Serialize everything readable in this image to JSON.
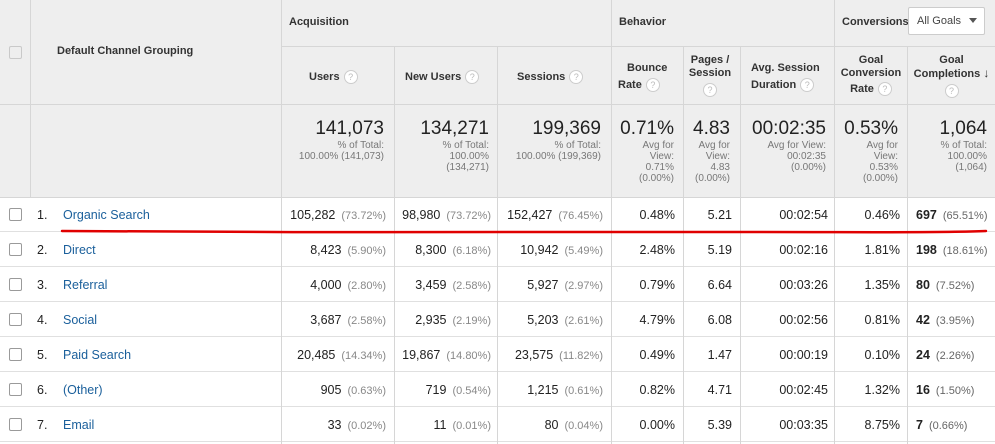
{
  "header": {
    "dimension_label": "Default Channel Grouping",
    "group_acquisition": "Acquisition",
    "group_behavior": "Behavior",
    "group_conversions": "Conversions",
    "goal_select": "All Goals",
    "col_users": "Users",
    "col_new_users": "New Users",
    "col_sessions": "Sessions",
    "col_bounce_1": "Bounce",
    "col_bounce_2": "Rate",
    "col_pages_1": "Pages /",
    "col_pages_2": "Session",
    "col_avg_1": "Avg. Session",
    "col_avg_2": "Duration",
    "col_gcr_1": "Goal",
    "col_gcr_2": "Conversion",
    "col_gcr_3": "Rate",
    "col_gc_1": "Goal",
    "col_gc_2": "Completions",
    "help": "?",
    "sort_arrow": "↓"
  },
  "totals": {
    "users": "141,073",
    "users_sub1": "% of Total:",
    "users_sub2": "100.00% (141,073)",
    "new_users": "134,271",
    "new_users_sub1": "% of Total:",
    "new_users_sub2": "100.00%",
    "new_users_sub3": "(134,271)",
    "sessions": "199,369",
    "sessions_sub1": "% of Total:",
    "sessions_sub2": "100.00% (199,369)",
    "bounce": "0.71%",
    "bounce_sub1": "Avg for",
    "bounce_sub2": "View:",
    "bounce_sub3": "0.71%",
    "bounce_sub4": "(0.00%)",
    "pages": "4.83",
    "pages_sub1": "Avg for",
    "pages_sub2": "View:",
    "pages_sub3": "4.83",
    "pages_sub4": "(0.00%)",
    "avg": "00:02:35",
    "avg_sub1": "Avg for View:",
    "avg_sub2": "00:02:35",
    "avg_sub3": "(0.00%)",
    "gcr": "0.53%",
    "gcr_sub1": "Avg for",
    "gcr_sub2": "View:",
    "gcr_sub3": "0.53%",
    "gcr_sub4": "(0.00%)",
    "gc": "1,064",
    "gc_sub1": "% of Total:",
    "gc_sub2": "100.00%",
    "gc_sub3": "(1,064)"
  },
  "rows": [
    {
      "idx": "1.",
      "name": "Organic Search",
      "users": "105,282",
      "users_pct": "(73.72%)",
      "new_users": "98,980",
      "new_users_pct": "(73.72%)",
      "sessions": "152,427",
      "sessions_pct": "(76.45%)",
      "bounce": "0.48%",
      "pages": "5.21",
      "avg": "00:02:54",
      "gcr": "0.46%",
      "gc": "697",
      "gc_pct": "(65.51%)"
    },
    {
      "idx": "2.",
      "name": "Direct",
      "users": "8,423",
      "users_pct": "(5.90%)",
      "new_users": "8,300",
      "new_users_pct": "(6.18%)",
      "sessions": "10,942",
      "sessions_pct": "(5.49%)",
      "bounce": "2.48%",
      "pages": "5.19",
      "avg": "00:02:16",
      "gcr": "1.81%",
      "gc": "198",
      "gc_pct": "(18.61%)"
    },
    {
      "idx": "3.",
      "name": "Referral",
      "users": "4,000",
      "users_pct": "(2.80%)",
      "new_users": "3,459",
      "new_users_pct": "(2.58%)",
      "sessions": "5,927",
      "sessions_pct": "(2.97%)",
      "bounce": "0.79%",
      "pages": "6.64",
      "avg": "00:03:26",
      "gcr": "1.35%",
      "gc": "80",
      "gc_pct": "(7.52%)"
    },
    {
      "idx": "4.",
      "name": "Social",
      "users": "3,687",
      "users_pct": "(2.58%)",
      "new_users": "2,935",
      "new_users_pct": "(2.19%)",
      "sessions": "5,203",
      "sessions_pct": "(2.61%)",
      "bounce": "4.79%",
      "pages": "6.08",
      "avg": "00:02:56",
      "gcr": "0.81%",
      "gc": "42",
      "gc_pct": "(3.95%)"
    },
    {
      "idx": "5.",
      "name": "Paid Search",
      "users": "20,485",
      "users_pct": "(14.34%)",
      "new_users": "19,867",
      "new_users_pct": "(14.80%)",
      "sessions": "23,575",
      "sessions_pct": "(11.82%)",
      "bounce": "0.49%",
      "pages": "1.47",
      "avg": "00:00:19",
      "gcr": "0.10%",
      "gc": "24",
      "gc_pct": "(2.26%)"
    },
    {
      "idx": "6.",
      "name": "(Other)",
      "users": "905",
      "users_pct": "(0.63%)",
      "new_users": "719",
      "new_users_pct": "(0.54%)",
      "sessions": "1,215",
      "sessions_pct": "(0.61%)",
      "bounce": "0.82%",
      "pages": "4.71",
      "avg": "00:02:45",
      "gcr": "1.32%",
      "gc": "16",
      "gc_pct": "(1.50%)"
    },
    {
      "idx": "7.",
      "name": "Email",
      "users": "33",
      "users_pct": "(0.02%)",
      "new_users": "11",
      "new_users_pct": "(0.01%)",
      "sessions": "80",
      "sessions_pct": "(0.04%)",
      "bounce": "0.00%",
      "pages": "5.39",
      "avg": "00:03:35",
      "gcr": "8.75%",
      "gc": "7",
      "gc_pct": "(0.66%)"
    }
  ],
  "colors": {
    "link": "#1a5f9b",
    "header_bg": "#eeeeee",
    "annotation_red": "#e00000"
  }
}
